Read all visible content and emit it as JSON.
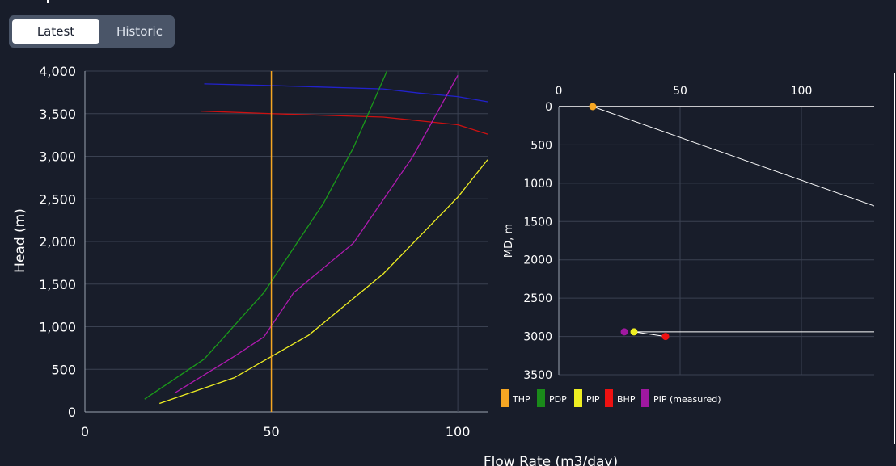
{
  "toggle": {
    "options": [
      "Latest",
      "Historic"
    ],
    "active": "Latest"
  },
  "chart_data": [
    {
      "type": "line",
      "xlabel": "Flow Rate (m3/day)",
      "ylabel": "Head (m)",
      "xlim": [
        0,
        108
      ],
      "ylim": [
        0,
        4000
      ],
      "x_ticks": [
        0,
        50,
        100
      ],
      "x_tick_labels": [
        "0",
        "50",
        "100"
      ],
      "y_ticks": [
        0,
        500,
        1000,
        1500,
        2000,
        2500,
        3000,
        3500,
        4000
      ],
      "y_tick_labels": [
        "0",
        "500",
        "1,000",
        "1,500",
        "2,000",
        "2,500",
        "3,000",
        "3,500",
        "4,000"
      ],
      "grid": true,
      "vertical_line": {
        "x": 50,
        "color": "#f5a623"
      },
      "series": [
        {
          "color": "#2222cc",
          "points": [
            [
              32,
              3850
            ],
            [
              50,
              3830
            ],
            [
              65,
              3810
            ],
            [
              80,
              3790
            ],
            [
              90,
              3740
            ],
            [
              100,
              3700
            ],
            [
              108,
              3640
            ]
          ]
        },
        {
          "color": "#cc1111",
          "points": [
            [
              31,
              3530
            ],
            [
              50,
              3500
            ],
            [
              65,
              3480
            ],
            [
              80,
              3460
            ],
            [
              100,
              3370
            ],
            [
              108,
              3260
            ]
          ]
        },
        {
          "color": "#1a9a1a",
          "points": [
            [
              16,
              150
            ],
            [
              32,
              620
            ],
            [
              48,
              1400
            ],
            [
              64,
              2450
            ],
            [
              72,
              3100
            ],
            [
              81,
              4000
            ]
          ]
        },
        {
          "color": "#b01ab0",
          "points": [
            [
              24,
              220
            ],
            [
              40,
              650
            ],
            [
              48,
              880
            ],
            [
              56,
              1400
            ],
            [
              72,
              1980
            ],
            [
              88,
              3000
            ],
            [
              100,
              3950
            ]
          ]
        },
        {
          "color": "#eeee22",
          "points": [
            [
              20,
              100
            ],
            [
              40,
              400
            ],
            [
              60,
              900
            ],
            [
              80,
              1620
            ],
            [
              100,
              2520
            ],
            [
              108,
              2960
            ]
          ]
        }
      ]
    },
    {
      "type": "scatter",
      "ylabel": "MD, m",
      "xlim": [
        0,
        130
      ],
      "ylim": [
        0,
        3500
      ],
      "y_inverted": true,
      "x_ticks": [
        0,
        50,
        100
      ],
      "x_tick_labels": [
        "0",
        "50",
        "100"
      ],
      "y_ticks": [
        0,
        500,
        1000,
        1500,
        2000,
        2500,
        3000,
        3500
      ],
      "y_tick_labels": [
        "0",
        "500",
        "1000",
        "1500",
        "2000",
        "2500",
        "3000",
        "3500"
      ],
      "grid": true,
      "legend": [
        {
          "label": "THP",
          "color": "#f5a623"
        },
        {
          "label": "PDP",
          "color": "#1a8a1a"
        },
        {
          "label": "PIP",
          "color": "#eeee22"
        },
        {
          "label": "BHP",
          "color": "#ee1111"
        },
        {
          "label": "PIP (measured)",
          "color": "#a018a0"
        }
      ],
      "points": [
        {
          "name": "THP",
          "x": 14,
          "y": 0,
          "color": "#f5a623"
        },
        {
          "name": "PIP",
          "x": 31,
          "y": 2940,
          "color": "#eeee22"
        },
        {
          "name": "BHP",
          "x": 44,
          "y": 3000,
          "color": "#ee1111"
        },
        {
          "name": "PIP (measured)",
          "x": 27,
          "y": 2940,
          "color": "#a018a0"
        }
      ],
      "lines": [
        {
          "color": "#ffffff",
          "points": [
            [
              14,
              0
            ],
            [
              133,
              1330
            ]
          ]
        },
        {
          "color": "#ffffff",
          "points": [
            [
              31,
              2940
            ],
            [
              133,
              2940
            ]
          ]
        },
        {
          "color": "#ffffff",
          "points": [
            [
              31,
              2940
            ],
            [
              44,
              3000
            ]
          ]
        }
      ]
    }
  ]
}
